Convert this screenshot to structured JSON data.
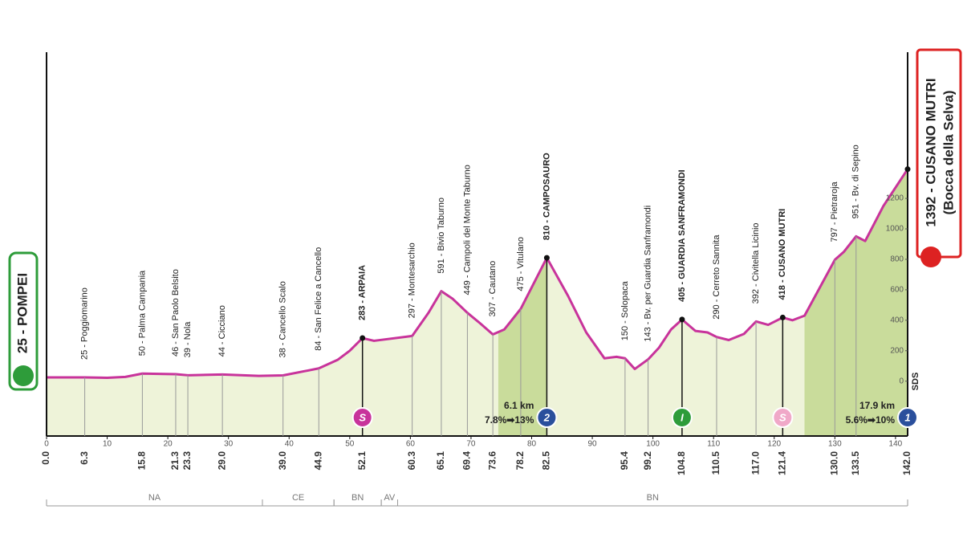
{
  "chart_data": {
    "type": "area",
    "x": [
      0,
      6.3,
      10,
      13,
      15.8,
      21.3,
      23.3,
      29,
      35,
      39,
      44.9,
      48,
      50,
      52.1,
      54,
      60.3,
      63,
      65.1,
      67,
      69.4,
      71.5,
      73.6,
      75.5,
      78.2,
      82.5,
      86,
      89,
      92,
      94,
      95.4,
      97,
      99.2,
      101,
      103,
      104.8,
      107,
      109,
      110.5,
      112.5,
      115,
      117,
      119,
      121.4,
      123,
      125,
      130,
      131.5,
      133.5,
      135,
      138,
      142
    ],
    "values": [
      25,
      25,
      22,
      28,
      50,
      46,
      39,
      44,
      35,
      38,
      84,
      140,
      200,
      283,
      265,
      297,
      450,
      591,
      540,
      449,
      380,
      307,
      340,
      475,
      810,
      560,
      320,
      150,
      160,
      150,
      80,
      143,
      220,
      340,
      405,
      330,
      320,
      290,
      270,
      310,
      392,
      370,
      418,
      400,
      430,
      797,
      850,
      951,
      920,
      1150,
      1392
    ],
    "color": "#c8339b",
    "fill": "#eef3d9",
    "climb_fill": "#c9dc9b",
    "xlim": [
      0,
      142
    ],
    "ylim": [
      -360,
      2160
    ],
    "xticks": [
      0,
      10,
      20,
      30,
      40,
      50,
      60,
      70,
      80,
      90,
      100,
      110,
      120,
      130,
      140
    ],
    "yticks": [
      0,
      200,
      400,
      600,
      800,
      1000,
      1200
    ],
    "y_axis_label": "SDS",
    "start": {
      "km": {
        "value": 0,
        "label": "0.0"
      },
      "name": "25 - POMPEI"
    },
    "finish": {
      "km": {
        "value": 142,
        "label": "142.0"
      },
      "name": "1392 - CUSANO MUTRI",
      "subname": "(Bocca della Selva)"
    },
    "waypoints": [
      {
        "km": 6.3,
        "altitude": 25,
        "name": "25 - Poggiomarino"
      },
      {
        "km": 15.8,
        "altitude": 50,
        "name": "50 - Palma Campania"
      },
      {
        "km": 21.3,
        "altitude": 46,
        "name": "46 - San Paolo Belsito"
      },
      {
        "km": 23.3,
        "altitude": 39,
        "name": "39 - Nola"
      },
      {
        "km": {
          "value": 29,
          "label": "29.0"
        },
        "altitude": 44,
        "name": "44 - Cicciano"
      },
      {
        "km": {
          "value": 39,
          "label": "39.0"
        },
        "altitude": 38,
        "name": "38 - Cancello Scalo"
      },
      {
        "km": 44.9,
        "altitude": 84,
        "name": "84 - San Felice a Cancello"
      },
      {
        "km": 52.1,
        "altitude": 283,
        "name": "283 - ARPAIA",
        "bold": true
      },
      {
        "km": 60.3,
        "altitude": 297,
        "name": "297 - Montesarchio"
      },
      {
        "km": 65.1,
        "altitude": 591,
        "name": "591 - Bivio Taburno"
      },
      {
        "km": 69.4,
        "altitude": 449,
        "name": "449 - Campoli del Monte Taburno"
      },
      {
        "km": 73.6,
        "altitude": 307,
        "name": "307 - Cautano"
      },
      {
        "km": 78.2,
        "altitude": 475,
        "name": "475 - Vitulano"
      },
      {
        "km": 82.5,
        "altitude": 810,
        "name": "810 - CAMPOSAURO",
        "bold": true
      },
      {
        "km": 95.4,
        "altitude": 150,
        "name": "150 - Solopaca"
      },
      {
        "km": 99.2,
        "altitude": 143,
        "name": "143 - Bv. per Guardia Sanframondi"
      },
      {
        "km": 104.8,
        "altitude": 405,
        "name": "405 - GUARDIA SANFRAMONDI",
        "bold": true
      },
      {
        "km": 110.5,
        "altitude": 290,
        "name": "290 - Cerreto Sannita"
      },
      {
        "km": {
          "value": 117,
          "label": "117.0"
        },
        "altitude": 392,
        "name": "392 - Civitella Licinio"
      },
      {
        "km": 121.4,
        "altitude": 418,
        "name": "418 - CUSANO MUTRI",
        "bold": true
      },
      {
        "km": {
          "value": 130,
          "label": "130.0"
        },
        "altitude": 797,
        "name": "797 - Pietraroja"
      },
      {
        "km": 133.5,
        "altitude": 951,
        "name": "951 - Bv. di Sepino"
      }
    ],
    "climbs": [
      {
        "start": 74.5,
        "end": 82.5,
        "length": "6.1 km",
        "gradient": "7.8%➡13%"
      },
      {
        "start": 125,
        "end": 142,
        "length": "17.9 km",
        "gradient": "5.6%➡10%"
      }
    ],
    "badges": [
      {
        "km": 52.1,
        "label": "S",
        "color": "#c8339b"
      },
      {
        "km": 82.5,
        "label": "2",
        "color": "#2a4f9c"
      },
      {
        "km": 104.8,
        "label": "I",
        "color": "#2e9c3a"
      },
      {
        "km": 121.4,
        "label": "S",
        "color": "#f0a8c8"
      },
      {
        "km": 142,
        "label": "1",
        "color": "#2a4f9c"
      }
    ],
    "regions": [
      {
        "name": "NA",
        "start": 0,
        "end": 35.6
      },
      {
        "name": "CE",
        "start": 35.6,
        "end": 47.4
      },
      {
        "name": "BN",
        "start": 47.4,
        "end": 55.2
      },
      {
        "name": "AV",
        "start": 55.2,
        "end": 57.9
      },
      {
        "name": "BN",
        "start": 57.9,
        "end": 142
      }
    ]
  }
}
